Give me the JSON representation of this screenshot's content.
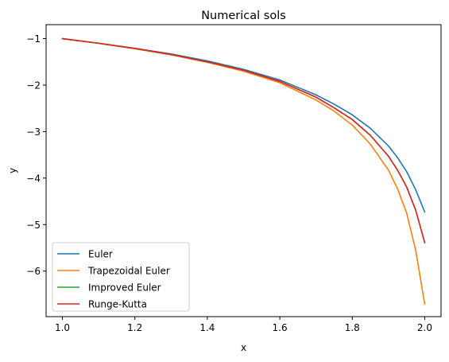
{
  "chart_data": {
    "type": "line",
    "title": "Numerical sols",
    "xlabel": "x",
    "ylabel": "y",
    "xlim": [
      0.955,
      2.045
    ],
    "ylim": [
      -6.98,
      -0.7
    ],
    "xticks": [
      1.0,
      1.2,
      1.4,
      1.6,
      1.8,
      2.0
    ],
    "xtick_labels": [
      "1.0",
      "1.2",
      "1.4",
      "1.6",
      "1.8",
      "2.0"
    ],
    "yticks": [
      -1,
      -2,
      -3,
      -4,
      -5,
      -6
    ],
    "ytick_labels": [
      "−1",
      "−2",
      "−3",
      "−4",
      "−5",
      "−6"
    ],
    "grid": false,
    "legend_position": "lower-left",
    "x": [
      1.0,
      1.1,
      1.2,
      1.3,
      1.4,
      1.5,
      1.6,
      1.7,
      1.75,
      1.8,
      1.85,
      1.9,
      1.925,
      1.95,
      1.975,
      2.0
    ],
    "series": [
      {
        "name": "Euler",
        "color": "#1f77b4",
        "values": [
          -1.0,
          -1.1,
          -1.21,
          -1.33,
          -1.48,
          -1.66,
          -1.89,
          -2.21,
          -2.41,
          -2.64,
          -2.93,
          -3.31,
          -3.56,
          -3.86,
          -4.25,
          -4.73
        ]
      },
      {
        "name": "Trapezoidal Euler",
        "color": "#ff7f0e",
        "values": [
          -1.0,
          -1.1,
          -1.22,
          -1.35,
          -1.51,
          -1.7,
          -1.95,
          -2.32,
          -2.56,
          -2.86,
          -3.27,
          -3.83,
          -4.23,
          -4.75,
          -5.55,
          -6.71
        ]
      },
      {
        "name": "Improved Euler",
        "color": "#2ca02c",
        "values": [
          -1.0,
          -1.1,
          -1.21,
          -1.34,
          -1.5,
          -1.68,
          -1.92,
          -2.26,
          -2.49,
          -2.74,
          -3.08,
          -3.53,
          -3.83,
          -4.19,
          -4.69,
          -5.39
        ]
      },
      {
        "name": "Runge-Kutta",
        "color": "#d62728",
        "values": [
          -1.0,
          -1.1,
          -1.21,
          -1.34,
          -1.5,
          -1.68,
          -1.92,
          -2.26,
          -2.49,
          -2.74,
          -3.08,
          -3.53,
          -3.83,
          -4.19,
          -4.69,
          -5.39
        ]
      }
    ]
  }
}
